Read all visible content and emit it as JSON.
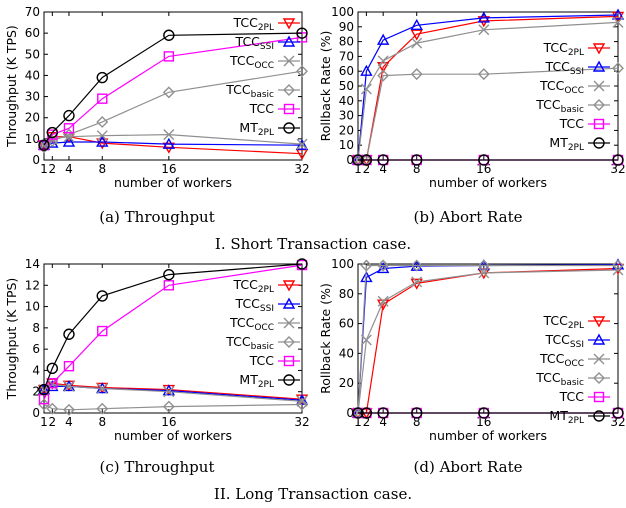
{
  "colors": {
    "TCC_2PL": "#ff0000",
    "TCC_SSI": "#0000ff",
    "TCC_OCC": "#909090",
    "TCC_basic": "#909090",
    "TCC": "#ff00ff",
    "MT_2PL": "#000000"
  },
  "chart_data": [
    {
      "id": "a",
      "type": "line",
      "caption": "(a) Throughput",
      "xlabel": "number of workers",
      "ylabel": "Throughput (K TPS)",
      "x": [
        1,
        2,
        4,
        8,
        16,
        32
      ],
      "xticks": [
        1,
        2,
        4,
        8,
        16,
        32
      ],
      "xticklabels": [
        "1",
        "2",
        "4",
        "8",
        "16",
        "32"
      ],
      "xlim": [
        1,
        32
      ],
      "ylim": [
        0,
        70
      ],
      "yticks": [
        0,
        10,
        20,
        30,
        40,
        50,
        60,
        70
      ],
      "legend": [
        {
          "key": "TCC_2PL",
          "base": "TCC",
          "sub": "2PL"
        },
        {
          "key": "TCC_SSI",
          "base": "TCC",
          "sub": "SSI"
        },
        {
          "key": "TCC_OCC",
          "base": "TCC",
          "sub": "OCC"
        },
        {
          "key": "TCC_basic",
          "base": "TCC",
          "sub": "basic"
        },
        {
          "key": "TCC",
          "base": "TCC",
          "sub": ""
        },
        {
          "key": "MT_2PL",
          "base": "MT",
          "sub": "2PL"
        }
      ],
      "series": [
        {
          "key": "TCC_2PL",
          "values": [
            7,
            11,
            11,
            8,
            6,
            3
          ]
        },
        {
          "key": "TCC_SSI",
          "values": [
            7,
            8,
            8.5,
            8.5,
            7.5,
            7
          ]
        },
        {
          "key": "TCC_OCC",
          "values": [
            7,
            10,
            11,
            11.5,
            12,
            7.5
          ]
        },
        {
          "key": "TCC_basic",
          "values": [
            6,
            9,
            12,
            18,
            32,
            42
          ]
        },
        {
          "key": "TCC",
          "values": [
            7,
            12,
            15,
            29,
            49,
            58
          ]
        },
        {
          "key": "MT_2PL",
          "values": [
            7,
            13,
            21,
            39,
            59,
            60
          ]
        }
      ]
    },
    {
      "id": "b",
      "type": "line",
      "caption": "(b) Abort Rate",
      "xlabel": "number of workers",
      "ylabel": "Rollback Rate (%)",
      "x": [
        1,
        2,
        4,
        8,
        16,
        32
      ],
      "xticks": [
        1,
        2,
        4,
        8,
        16,
        32
      ],
      "xticklabels": [
        "1",
        "2",
        "4",
        "8",
        "16",
        "32"
      ],
      "xlim": [
        1,
        32
      ],
      "ylim": [
        0,
        100
      ],
      "yticks": [
        0,
        10,
        20,
        30,
        40,
        50,
        60,
        70,
        80,
        90,
        100
      ],
      "legend": [
        {
          "key": "TCC_2PL",
          "base": "TCC",
          "sub": "2PL"
        },
        {
          "key": "TCC_SSI",
          "base": "TCC",
          "sub": "SSI"
        },
        {
          "key": "TCC_OCC",
          "base": "TCC",
          "sub": "OCC"
        },
        {
          "key": "TCC_basic",
          "base": "TCC",
          "sub": "basic"
        },
        {
          "key": "TCC",
          "base": "TCC",
          "sub": ""
        },
        {
          "key": "MT_2PL",
          "base": "MT",
          "sub": "2PL"
        }
      ],
      "series": [
        {
          "key": "TCC_2PL",
          "values": [
            0,
            0,
            63,
            85,
            94,
            97
          ]
        },
        {
          "key": "TCC_SSI",
          "values": [
            0,
            60,
            81,
            91,
            96,
            98
          ]
        },
        {
          "key": "TCC_OCC",
          "values": [
            0,
            48,
            67,
            79,
            88,
            93
          ]
        },
        {
          "key": "TCC_basic",
          "values": [
            0,
            0,
            57,
            58,
            58,
            62
          ]
        },
        {
          "key": "TCC",
          "values": [
            0,
            0,
            0,
            0,
            0,
            0
          ]
        },
        {
          "key": "MT_2PL",
          "values": [
            0,
            0,
            0,
            0,
            0,
            0
          ]
        }
      ]
    },
    {
      "id": "c",
      "type": "line",
      "caption": "(c) Throughput",
      "xlabel": "number of workers",
      "ylabel": "Throughput (K TPS)",
      "x": [
        1,
        2,
        4,
        8,
        16,
        32
      ],
      "xticks": [
        1,
        2,
        4,
        8,
        16,
        32
      ],
      "xticklabels": [
        "1",
        "2",
        "4",
        "8",
        "16",
        "32"
      ],
      "xlim": [
        1,
        32
      ],
      "ylim": [
        0,
        14
      ],
      "yticks": [
        0,
        2,
        4,
        6,
        8,
        10,
        12,
        14
      ],
      "legend": [
        {
          "key": "TCC_2PL",
          "base": "TCC",
          "sub": "2PL"
        },
        {
          "key": "TCC_SSI",
          "base": "TCC",
          "sub": "SSI"
        },
        {
          "key": "TCC_OCC",
          "base": "TCC",
          "sub": "OCC"
        },
        {
          "key": "TCC_basic",
          "base": "TCC",
          "sub": "basic"
        },
        {
          "key": "TCC",
          "base": "TCC",
          "sub": ""
        },
        {
          "key": "MT_2PL",
          "base": "MT",
          "sub": "2PL"
        }
      ],
      "series": [
        {
          "key": "TCC_2PL",
          "values": [
            2.2,
            2.8,
            2.6,
            2.4,
            2.2,
            1.3
          ]
        },
        {
          "key": "TCC_SSI",
          "values": [
            2.2,
            2.5,
            2.5,
            2.3,
            2.1,
            1.2
          ]
        },
        {
          "key": "TCC_OCC",
          "values": [
            2.2,
            2.7,
            2.5,
            2.3,
            2.0,
            1.1
          ]
        },
        {
          "key": "TCC_basic",
          "values": [
            0.8,
            0.4,
            0.3,
            0.4,
            0.6,
            0.8
          ]
        },
        {
          "key": "TCC",
          "values": [
            1.3,
            2.8,
            4.4,
            7.7,
            12,
            13.9
          ]
        },
        {
          "key": "MT_2PL",
          "values": [
            2.2,
            4.2,
            7.4,
            11,
            13,
            14
          ]
        }
      ]
    },
    {
      "id": "d",
      "type": "line",
      "caption": "(d) Abort Rate",
      "xlabel": "number of workers",
      "ylabel": "Rollback Rate (%)",
      "x": [
        1,
        2,
        4,
        8,
        16,
        32
      ],
      "xticks": [
        1,
        2,
        4,
        8,
        16,
        32
      ],
      "xticklabels": [
        "1",
        "2",
        "4",
        "8",
        "16",
        "32"
      ],
      "xlim": [
        1,
        32
      ],
      "ylim": [
        0,
        100
      ],
      "yticks": [
        0,
        20,
        40,
        60,
        80,
        100
      ],
      "legend": [
        {
          "key": "TCC_2PL",
          "base": "TCC",
          "sub": "2PL"
        },
        {
          "key": "TCC_SSI",
          "base": "TCC",
          "sub": "SSI"
        },
        {
          "key": "TCC_OCC",
          "base": "TCC",
          "sub": "OCC"
        },
        {
          "key": "TCC_basic",
          "base": "TCC",
          "sub": "basic"
        },
        {
          "key": "TCC",
          "base": "TCC",
          "sub": ""
        },
        {
          "key": "MT_2PL",
          "base": "MT",
          "sub": "2PL"
        }
      ],
      "series": [
        {
          "key": "TCC_2PL",
          "values": [
            0,
            0,
            73,
            87,
            94,
            97
          ]
        },
        {
          "key": "TCC_SSI",
          "values": [
            0,
            91,
            97,
            98.5,
            99,
            99.5
          ]
        },
        {
          "key": "TCC_OCC",
          "values": [
            0,
            49,
            75,
            88,
            94,
            96
          ]
        },
        {
          "key": "TCC_basic",
          "values": [
            0,
            99,
            99,
            99,
            99,
            99
          ]
        },
        {
          "key": "TCC",
          "values": [
            0,
            0,
            0,
            0,
            0,
            0
          ]
        },
        {
          "key": "MT_2PL",
          "values": [
            0,
            0,
            0,
            0,
            0,
            0
          ]
        }
      ]
    }
  ],
  "sections": [
    {
      "caption": "I. Short Transaction case."
    },
    {
      "caption": "II. Long Transaction case."
    }
  ]
}
